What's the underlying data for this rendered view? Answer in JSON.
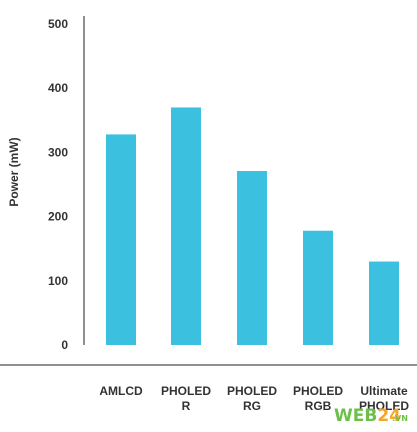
{
  "chart_data": {
    "type": "bar",
    "title": "",
    "xlabel": "",
    "ylabel": "Power (mW)",
    "categories": [
      [
        "AMLCD"
      ],
      [
        "PHOLED",
        "R"
      ],
      [
        "PHOLED",
        "RG"
      ],
      [
        "PHOLED",
        "RGB"
      ],
      [
        "Ultimate",
        "PHOLED"
      ]
    ],
    "values": [
      328,
      370,
      271,
      178,
      130
    ],
    "ylim": [
      0,
      500
    ],
    "yticks": [
      0,
      100,
      200,
      300,
      400,
      500
    ],
    "grid": false,
    "bar_color": "#3bc0e0"
  },
  "watermark": {
    "part1": "WEB",
    "part2": "24",
    "suffix": ".VN"
  }
}
